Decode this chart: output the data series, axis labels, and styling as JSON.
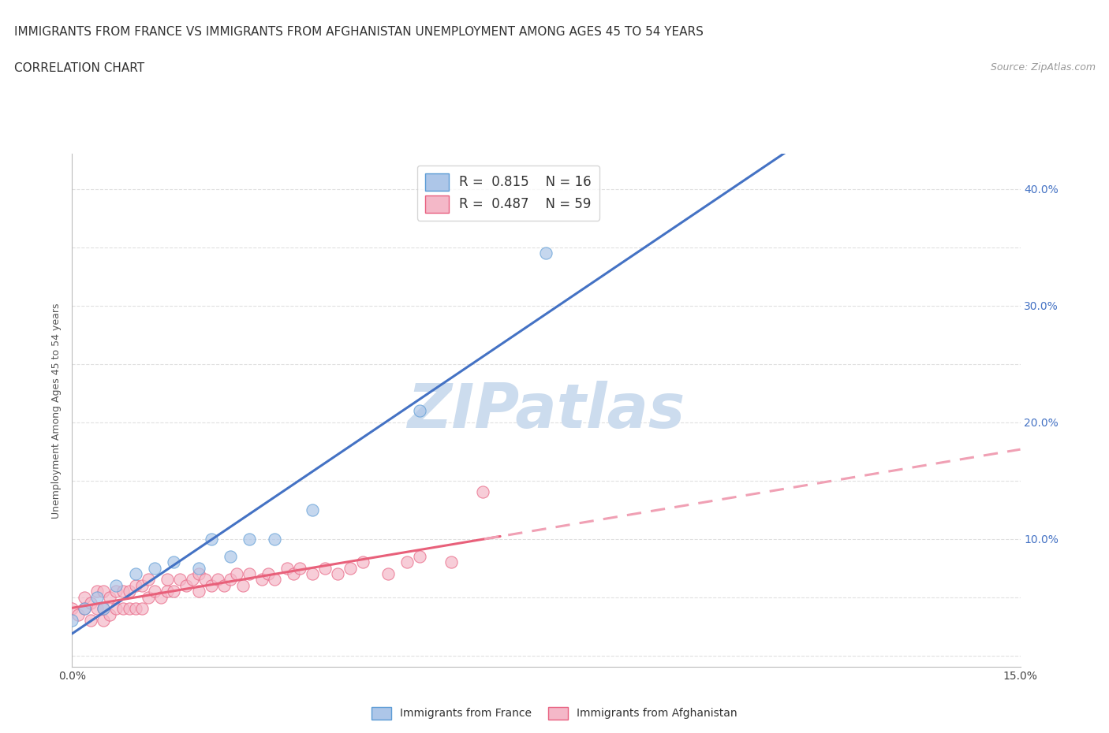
{
  "title_line1": "IMMIGRANTS FROM FRANCE VS IMMIGRANTS FROM AFGHANISTAN UNEMPLOYMENT AMONG AGES 45 TO 54 YEARS",
  "title_line2": "CORRELATION CHART",
  "source_text": "Source: ZipAtlas.com",
  "ylabel": "Unemployment Among Ages 45 to 54 years",
  "xlim": [
    0.0,
    0.15
  ],
  "ylim": [
    -0.01,
    0.43
  ],
  "xticks": [
    0.0,
    0.025,
    0.05,
    0.075,
    0.1,
    0.125,
    0.15
  ],
  "xticklabels": [
    "0.0%",
    "",
    "",
    "",
    "",
    "",
    "15.0%"
  ],
  "yticks": [
    0.0,
    0.05,
    0.1,
    0.15,
    0.2,
    0.25,
    0.3,
    0.35,
    0.4
  ],
  "yticklabels_right": [
    "",
    "",
    "10.0%",
    "",
    "20.0%",
    "",
    "30.0%",
    "",
    "40.0%"
  ],
  "france_fill_color": "#adc6e8",
  "france_edge_color": "#5b9bd5",
  "afghanistan_fill_color": "#f4b8c8",
  "afghanistan_edge_color": "#e86080",
  "france_line_color": "#4472c4",
  "afghanistan_solid_color": "#e8607a",
  "afghanistan_dash_color": "#f0a0b4",
  "watermark_color": "#ccdcee",
  "legend_label_france": "R =  0.815    N = 16",
  "legend_label_afghanistan": "R =  0.487    N = 59",
  "france_scatter_x": [
    0.0,
    0.002,
    0.004,
    0.005,
    0.007,
    0.01,
    0.013,
    0.016,
    0.02,
    0.022,
    0.025,
    0.028,
    0.032,
    0.038,
    0.055,
    0.075
  ],
  "france_scatter_y": [
    0.03,
    0.04,
    0.05,
    0.04,
    0.06,
    0.07,
    0.075,
    0.08,
    0.075,
    0.1,
    0.085,
    0.1,
    0.1,
    0.125,
    0.21,
    0.345
  ],
  "afghanistan_scatter_x": [
    0.0,
    0.001,
    0.002,
    0.002,
    0.003,
    0.003,
    0.004,
    0.004,
    0.005,
    0.005,
    0.005,
    0.006,
    0.006,
    0.007,
    0.007,
    0.008,
    0.008,
    0.009,
    0.009,
    0.01,
    0.01,
    0.011,
    0.011,
    0.012,
    0.012,
    0.013,
    0.014,
    0.015,
    0.015,
    0.016,
    0.017,
    0.018,
    0.019,
    0.02,
    0.02,
    0.021,
    0.022,
    0.023,
    0.024,
    0.025,
    0.026,
    0.027,
    0.028,
    0.03,
    0.031,
    0.032,
    0.034,
    0.035,
    0.036,
    0.038,
    0.04,
    0.042,
    0.044,
    0.046,
    0.05,
    0.053,
    0.055,
    0.06,
    0.065
  ],
  "afghanistan_scatter_y": [
    0.04,
    0.035,
    0.04,
    0.05,
    0.03,
    0.045,
    0.04,
    0.055,
    0.03,
    0.04,
    0.055,
    0.035,
    0.05,
    0.04,
    0.055,
    0.04,
    0.055,
    0.04,
    0.055,
    0.04,
    0.06,
    0.04,
    0.06,
    0.05,
    0.065,
    0.055,
    0.05,
    0.055,
    0.065,
    0.055,
    0.065,
    0.06,
    0.065,
    0.055,
    0.07,
    0.065,
    0.06,
    0.065,
    0.06,
    0.065,
    0.07,
    0.06,
    0.07,
    0.065,
    0.07,
    0.065,
    0.075,
    0.07,
    0.075,
    0.07,
    0.075,
    0.07,
    0.075,
    0.08,
    0.07,
    0.08,
    0.085,
    0.08,
    0.14
  ],
  "grid_color": "#e0e0e0",
  "background_color": "#ffffff",
  "title_fontsize": 11,
  "axis_label_fontsize": 9,
  "tick_fontsize": 10,
  "legend_fontsize": 12,
  "right_tick_color": "#4472c4"
}
